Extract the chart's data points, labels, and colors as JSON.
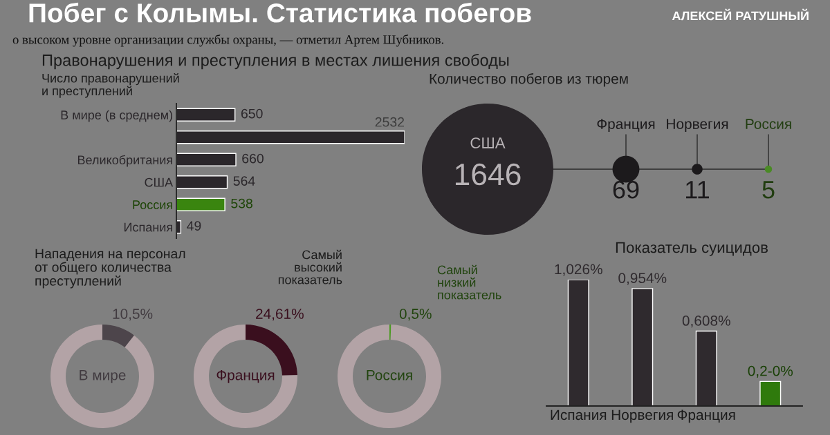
{
  "chart_data": [
    {
      "type": "other",
      "title": "Побег с Колымы. Статистика побегов",
      "subtitle": "АЛЕКСЕЙ РАТУШНЫЙ",
      "annotations": [
        "о высоком уровне организации службы охраны, — отметил Артем Шубников."
      ]
    },
    {
      "type": "bar",
      "orientation": "horizontal",
      "title": "Правонарушения и преступления в местах лишения свободы",
      "subtitle": "Число правонарушений\nи преступлений",
      "categories": [
        "В мире (в среднем)",
        null,
        "Великобритания",
        "США",
        "Россия",
        "Испания"
      ],
      "values": [
        650,
        2532,
        660,
        564,
        538,
        49
      ],
      "colors": [
        "#2b272b",
        "#2b272b",
        "#2b272b",
        "#2b272b",
        "#3a850f",
        "#2b272b"
      ],
      "data_labels": true
    },
    {
      "type": "other",
      "title": "Количество побегов из тюрем",
      "categories": [
        "США",
        "Франция",
        "Норвегия",
        "Россия"
      ],
      "values": [
        1646,
        69,
        11,
        5
      ],
      "colors": [
        "#2b272b",
        "#1c1a1c",
        "#1c1a1c",
        "#4a8a25"
      ],
      "data_labels": true
    },
    {
      "type": "donut",
      "title": "В мире",
      "annotations": [
        "Нападения на персонал\nот общего количества\nпреступлений"
      ],
      "categories": [
        null,
        null
      ],
      "values": [
        10.5,
        89.5
      ],
      "colors": [
        "#4d454b",
        "#b3a3a6"
      ],
      "value_labels": [
        "10,5%",
        null
      ]
    },
    {
      "type": "donut",
      "title": "Франция",
      "annotations": [
        "Самый\nвысокий\nпоказатель"
      ],
      "categories": [
        null,
        null
      ],
      "values": [
        24.61,
        75.39
      ],
      "colors": [
        "#3a0f1e",
        "#b3a3a6"
      ],
      "value_labels": [
        "24,61%",
        null
      ]
    },
    {
      "type": "donut",
      "title": "Россия",
      "annotations": [
        "Самый\nнизкий\nпоказатель"
      ],
      "categories": [
        null,
        null
      ],
      "values": [
        0.5,
        99.5
      ],
      "colors": [
        "#4a9a20",
        "#b3a3a6"
      ],
      "value_labels": [
        "0,5%",
        null
      ]
    },
    {
      "type": "bar",
      "title": "Показатель суицидов",
      "categories": [
        "Испания",
        "Норвегия",
        "Франция",
        null
      ],
      "values": [
        1.026,
        0.954,
        0.608,
        0.2
      ],
      "colors": [
        "#2f2a2e",
        "#2f2a2e",
        "#2f2a2e",
        "#2f7a0c"
      ],
      "value_labels": [
        "1,026%",
        "0,954%",
        "0,608%",
        "0,2-0%"
      ]
    }
  ]
}
